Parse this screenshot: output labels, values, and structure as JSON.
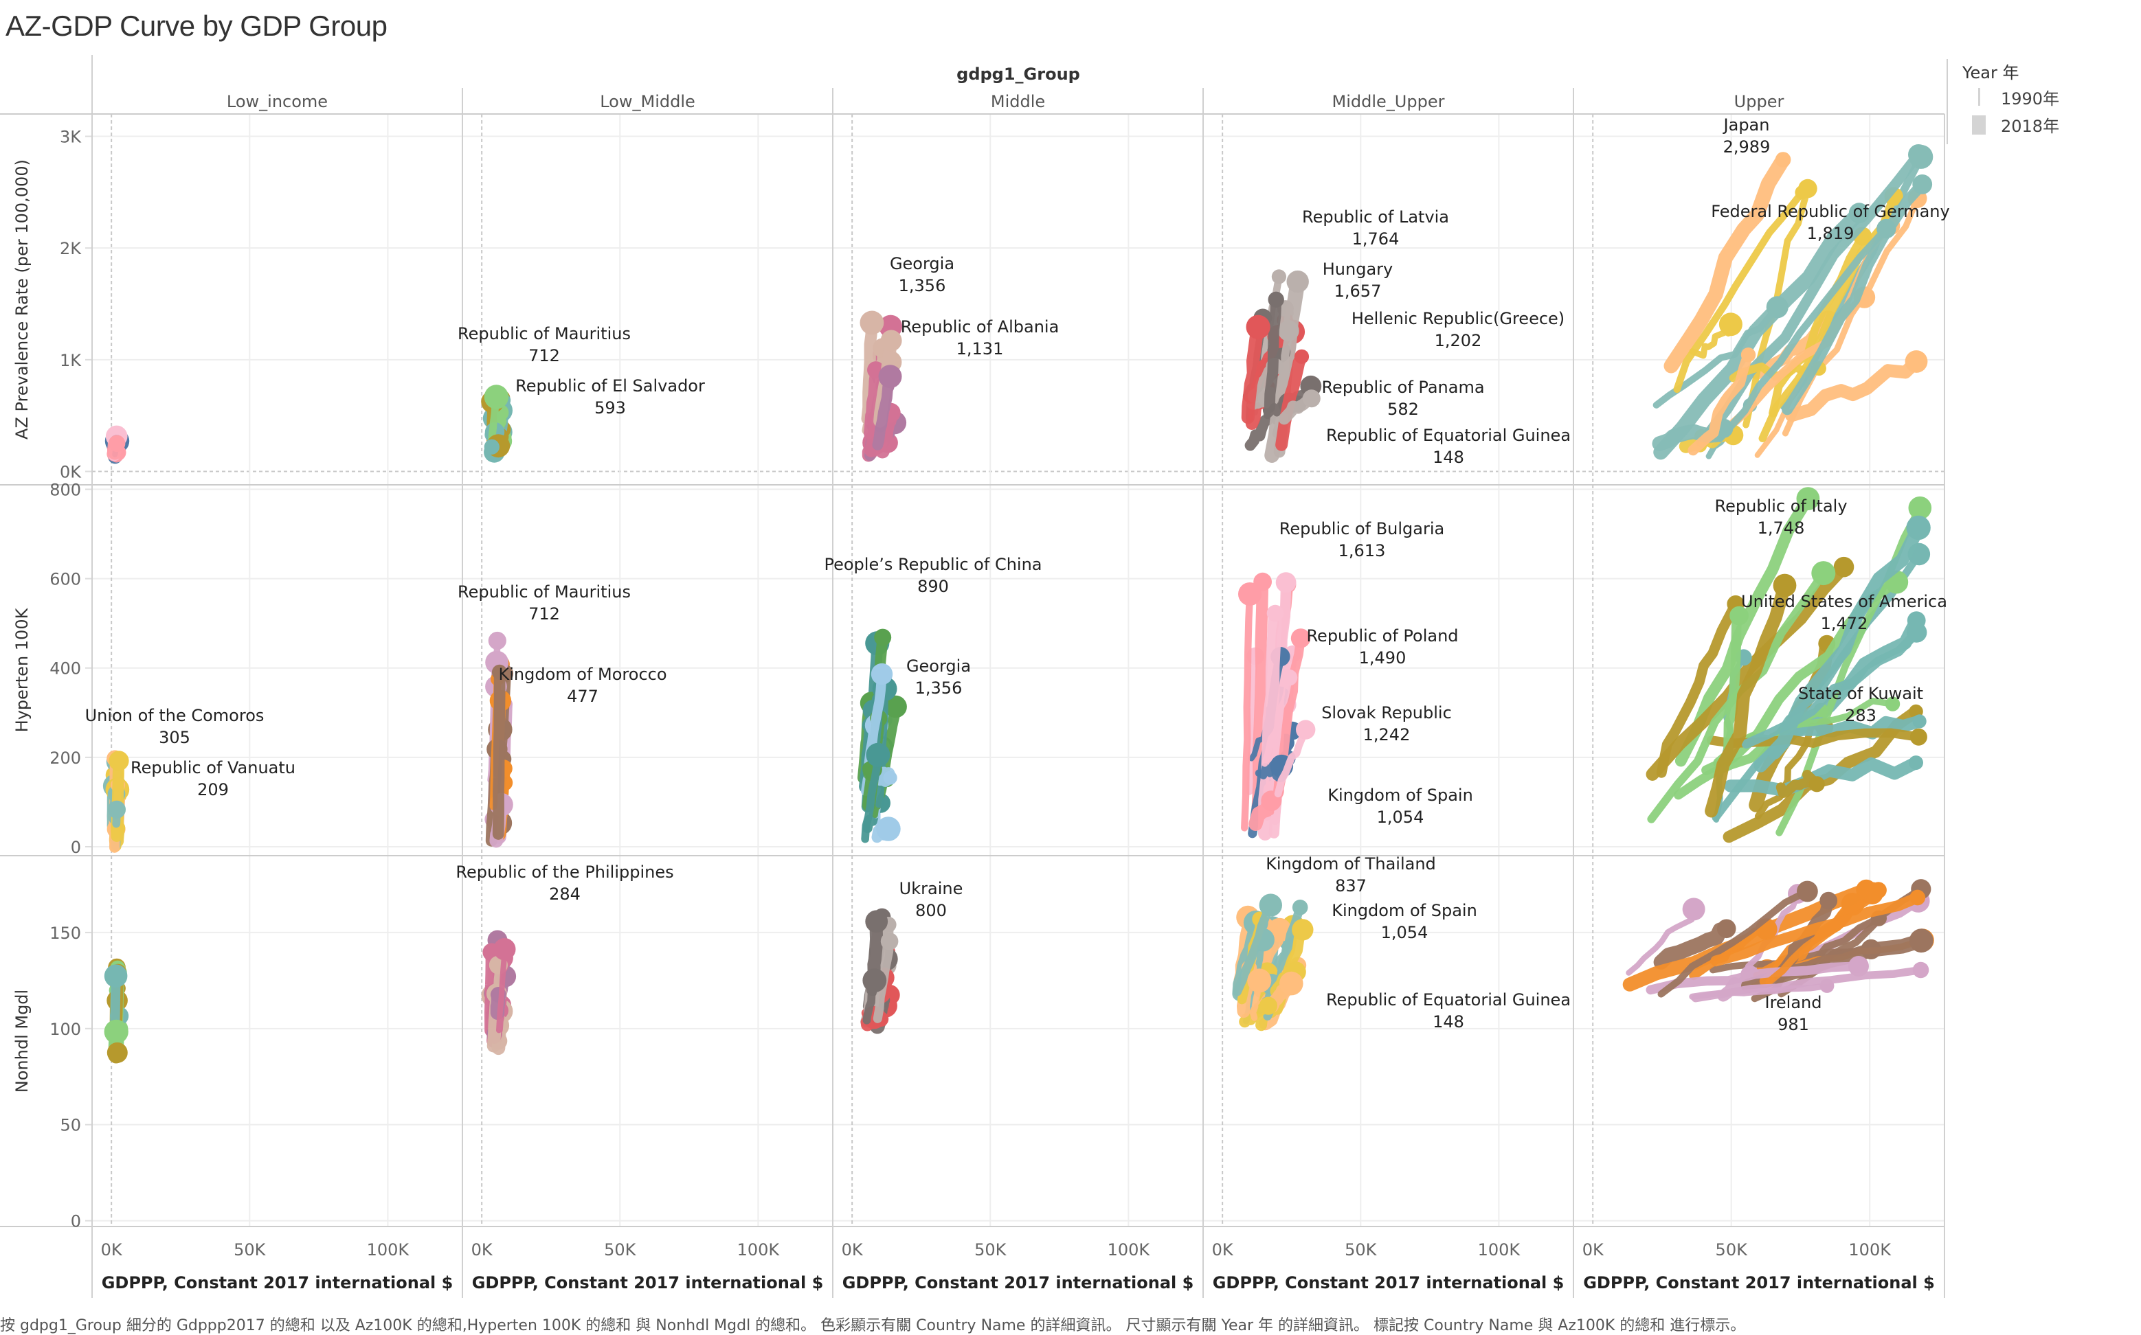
{
  "title": "AZ-GDP Curve by GDP Group",
  "footer": "按 gdpg1_Group 細分的 Gdppp2017 的總和 以及 Az100K 的總和,Hyperten 100K 的總和 與 Nonhdl Mgdl 的總和。 色彩顯示有關 Country Name 的詳細資訊。 尺寸顯示有關 Year 年 的詳細資訊。 標記按 Country Name 與 Az100K 的總和 進行標示。",
  "legend": {
    "title": "Year 年",
    "items": [
      {
        "label": "1990年",
        "size": "small"
      },
      {
        "label": "2018年",
        "size": "large"
      }
    ],
    "color": "#d4d4d4"
  },
  "chart_data": {
    "type": "line",
    "subtype": "trajectory small-multiples (size encodes year)",
    "column_header": "gdpg1_Group",
    "columns": [
      "Low_income",
      "Low_Middle",
      "Middle",
      "Middle_Upper",
      "Upper"
    ],
    "xlabel": "GDPPP, Constant 2017 international $",
    "xticks": [
      "0K",
      "50K",
      "100K"
    ],
    "xlim": [
      -7000,
      127000
    ],
    "grid": true,
    "palette": [
      "#4e79a7",
      "#f28e2b",
      "#e15759",
      "#76b7b2",
      "#59a14f",
      "#edc948",
      "#b07aa1",
      "#ff9da7",
      "#9c755f",
      "#bab0ac",
      "#8cd17d",
      "#499894",
      "#86bcb6",
      "#d37295",
      "#fabfd2",
      "#d4a6c8",
      "#79706e",
      "#b6992d",
      "#a0cbe8",
      "#ffbe7d",
      "#d7b5a6"
    ],
    "rows": [
      {
        "ylabel": "AZ Prevalence Rate (per 100,000)",
        "yticks": [
          "0K",
          "1K",
          "2K",
          "3K"
        ],
        "tick_values": [
          0,
          1000,
          2000,
          3000
        ],
        "ylim": [
          -120,
          3200
        ],
        "annotations": [
          [],
          [
            {
              "name": "Republic of Mauritius",
              "value": "712"
            },
            {
              "name": "Republic of El Salvador",
              "value": "593"
            }
          ],
          [
            {
              "name": "Georgia",
              "value": "1,356"
            },
            {
              "name": "Republic of Albania",
              "value": "1,131"
            }
          ],
          [
            {
              "name": "Republic of Latvia",
              "value": "1,764"
            },
            {
              "name": "Hungary",
              "value": "1,657"
            },
            {
              "name": "Hellenic Republic(Greece)",
              "value": "1,202"
            },
            {
              "name": "Republic of Panama",
              "value": "582"
            },
            {
              "name": "Republic of Equatorial Guinea",
              "value": "148"
            }
          ],
          [
            {
              "name": "Japan",
              "value": "2,989"
            },
            {
              "name": "Federal Republic of Germany",
              "value": "1,819"
            }
          ]
        ],
        "clusters": [
          {
            "x": [
              1000,
              3000
            ],
            "y": [
              120,
              320
            ]
          },
          {
            "x": [
              3000,
              9000
            ],
            "y": [
              150,
              720
            ]
          },
          {
            "x": [
              5000,
              17000
            ],
            "y": [
              80,
              1360
            ]
          },
          {
            "x": [
              8000,
              35000
            ],
            "y": [
              140,
              1860
            ]
          },
          {
            "x": [
              18000,
              118000
            ],
            "y": [
              60,
              2989
            ]
          }
        ]
      },
      {
        "ylabel": "Hyperten 100K",
        "yticks": [
          "0",
          "200",
          "400",
          "600",
          "800"
        ],
        "tick_values": [
          0,
          200,
          400,
          600,
          800
        ],
        "ylim": [
          -20,
          810
        ],
        "annotations": [
          [
            {
              "name": "Union of the Comoros",
              "value": "305"
            },
            {
              "name": "Republic of Vanuatu",
              "value": "209"
            }
          ],
          [
            {
              "name": "Republic of Mauritius",
              "value": "712"
            },
            {
              "name": "Kingdom of Morocco",
              "value": "477"
            }
          ],
          [
            {
              "name": "People’s Republic of China",
              "value": "890"
            },
            {
              "name": "Georgia",
              "value": "1,356"
            }
          ],
          [
            {
              "name": "Republic of Bulgaria",
              "value": "1,613"
            },
            {
              "name": "Republic of Poland",
              "value": "1,490"
            },
            {
              "name": "Slovak Republic",
              "value": "1,242"
            },
            {
              "name": "Kingdom of Spain",
              "value": "1,054"
            }
          ],
          [
            {
              "name": "Republic of Italy",
              "value": "1,748"
            },
            {
              "name": "United States of America",
              "value": "1,472"
            },
            {
              "name": "State of Kuwait",
              "value": "283"
            }
          ]
        ],
        "clusters": [
          {
            "x": [
              1000,
              3000
            ],
            "y": [
              0,
              200
            ]
          },
          {
            "x": [
              3000,
              9000
            ],
            "y": [
              10,
              470
            ]
          },
          {
            "x": [
              4000,
              17000
            ],
            "y": [
              5,
              520
            ]
          },
          {
            "x": [
              8000,
              35000
            ],
            "y": [
              25,
              600
            ]
          },
          {
            "x": [
              18000,
              118000
            ],
            "y": [
              20,
              770
            ]
          }
        ]
      },
      {
        "ylabel": "Nonhdl Mgdl",
        "yticks": [
          "0",
          "50",
          "100",
          "150"
        ],
        "tick_values": [
          0,
          50,
          100,
          150
        ],
        "ylim": [
          -3,
          190
        ],
        "annotations": [
          [],
          [
            {
              "name": "Republic of the Philippines",
              "value": "284"
            }
          ],
          [
            {
              "name": "Ukraine",
              "value": "800"
            }
          ],
          [
            {
              "name": "Kingdom of Thailand",
              "value": "837"
            },
            {
              "name": "Kingdom of Spain",
              "value": "1,054"
            },
            {
              "name": "Republic of Equatorial Guinea",
              "value": "148"
            }
          ],
          [
            {
              "name": "Ireland",
              "value": "981"
            }
          ]
        ],
        "clusters": [
          {
            "x": [
              1000,
              3000
            ],
            "y": [
              80,
              135
            ]
          },
          {
            "x": [
              3000,
              9000
            ],
            "y": [
              90,
              155
            ]
          },
          {
            "x": [
              4000,
              17000
            ],
            "y": [
              100,
              160
            ]
          },
          {
            "x": [
              5000,
              35000
            ],
            "y": [
              100,
              165
            ]
          },
          {
            "x": [
              11000,
              118000
            ],
            "y": [
              115,
              175
            ]
          }
        ]
      }
    ]
  }
}
